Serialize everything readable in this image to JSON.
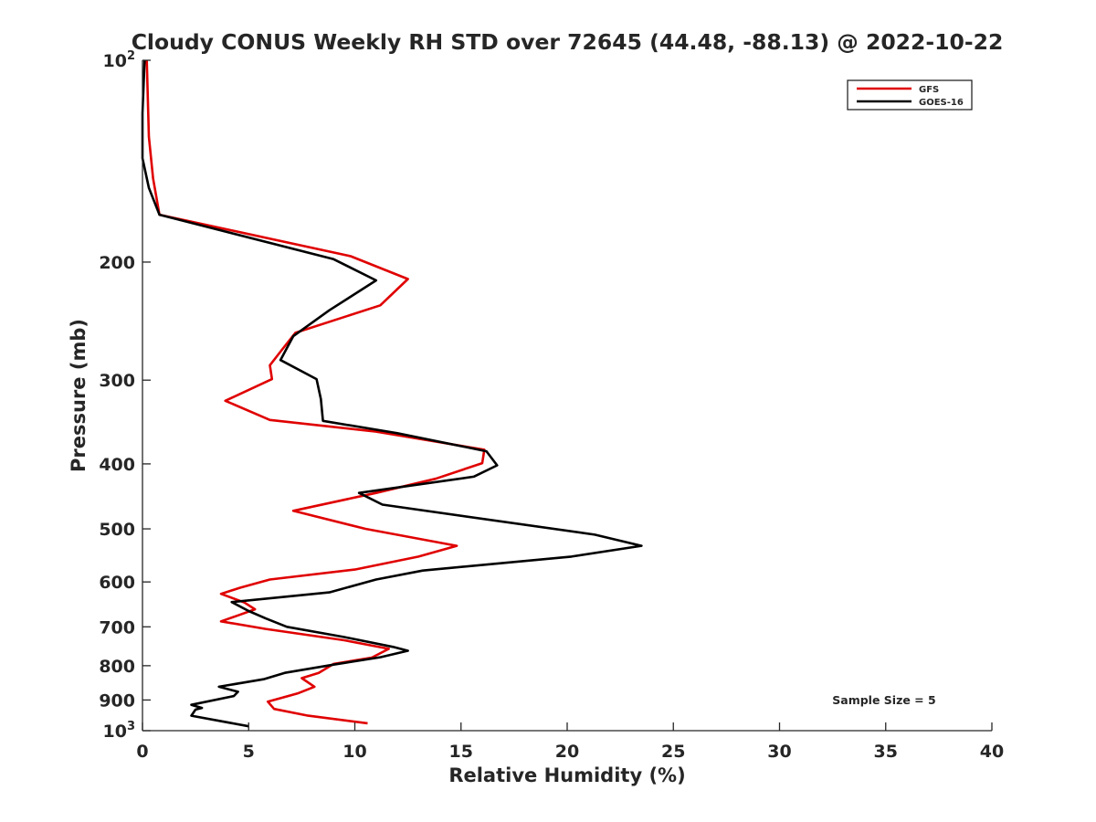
{
  "chart_data": {
    "type": "line",
    "title": "Cloudy CONUS Weekly RH STD over 72645 (44.48, -88.13) @ 2022-10-22",
    "xlabel": "Relative Humidity (%)",
    "ylabel": "Pressure (mb)",
    "xlim": [
      0,
      40
    ],
    "ylim": [
      100,
      1000
    ],
    "y_scale": "log",
    "y_reversed": true,
    "grid": false,
    "legend_position": "top-right",
    "annotation": "Sample Size = 5",
    "x_ticks": [
      0,
      5,
      10,
      15,
      20,
      25,
      30,
      35,
      40
    ],
    "y_ticks": [
      100,
      200,
      300,
      400,
      500,
      600,
      700,
      800,
      900,
      1000
    ],
    "y_tick_labels": [
      {
        "base": "10",
        "exp": "2"
      },
      {
        "base": "200",
        "exp": ""
      },
      {
        "base": "300",
        "exp": ""
      },
      {
        "base": "400",
        "exp": ""
      },
      {
        "base": "500",
        "exp": ""
      },
      {
        "base": "600",
        "exp": ""
      },
      {
        "base": "700",
        "exp": ""
      },
      {
        "base": "800",
        "exp": ""
      },
      {
        "base": "900",
        "exp": ""
      },
      {
        "base": "10",
        "exp": "3"
      }
    ],
    "series": [
      {
        "name": "GFS",
        "color": "#e00000",
        "points": [
          [
            0.2,
            100
          ],
          [
            0.3,
            130
          ],
          [
            0.5,
            150
          ],
          [
            0.8,
            170
          ],
          [
            9.8,
            196
          ],
          [
            12.5,
            212
          ],
          [
            11.2,
            232
          ],
          [
            7.2,
            255
          ],
          [
            6.5,
            272
          ],
          [
            6.0,
            285
          ],
          [
            6.1,
            299
          ],
          [
            3.9,
            322
          ],
          [
            6.0,
            344
          ],
          [
            11.0,
            358
          ],
          [
            16.1,
            381
          ],
          [
            16.0,
            399
          ],
          [
            13.8,
            421
          ],
          [
            11.0,
            442
          ],
          [
            7.1,
            470
          ],
          [
            10.5,
            500
          ],
          [
            14.8,
            530
          ],
          [
            13.0,
            550
          ],
          [
            10.0,
            575
          ],
          [
            6.0,
            595
          ],
          [
            4.6,
            612
          ],
          [
            3.7,
            625
          ],
          [
            4.8,
            644
          ],
          [
            5.3,
            659
          ],
          [
            4.5,
            673
          ],
          [
            3.7,
            687
          ],
          [
            5.8,
            705
          ],
          [
            9.5,
            733
          ],
          [
            11.6,
            755
          ],
          [
            10.8,
            778
          ],
          [
            9.0,
            795
          ],
          [
            8.3,
            820
          ],
          [
            7.5,
            835
          ],
          [
            8.1,
            860
          ],
          [
            7.3,
            880
          ],
          [
            5.9,
            905
          ],
          [
            6.2,
            928
          ],
          [
            7.8,
            950
          ],
          [
            10.6,
            975
          ]
        ]
      },
      {
        "name": "GOES-16",
        "color": "#000000",
        "points": [
          [
            0.1,
            100
          ],
          [
            0.0,
            120
          ],
          [
            0.0,
            140
          ],
          [
            0.3,
            155
          ],
          [
            0.8,
            170
          ],
          [
            9.0,
            198
          ],
          [
            11.0,
            213
          ],
          [
            8.8,
            236
          ],
          [
            7.1,
            258
          ],
          [
            6.5,
            280
          ],
          [
            8.2,
            299
          ],
          [
            8.4,
            320
          ],
          [
            8.5,
            345
          ],
          [
            12.0,
            360
          ],
          [
            16.2,
            383
          ],
          [
            16.7,
            402
          ],
          [
            15.6,
            418
          ],
          [
            10.2,
            442
          ],
          [
            11.3,
            460
          ],
          [
            21.3,
            510
          ],
          [
            23.5,
            530
          ],
          [
            20.2,
            550
          ],
          [
            13.2,
            577
          ],
          [
            11.0,
            595
          ],
          [
            8.8,
            622
          ],
          [
            4.2,
            643
          ],
          [
            5.0,
            663
          ],
          [
            5.8,
            680
          ],
          [
            6.8,
            700
          ],
          [
            9.5,
            725
          ],
          [
            11.8,
            750
          ],
          [
            12.5,
            760
          ],
          [
            11.2,
            777
          ],
          [
            9.0,
            797
          ],
          [
            6.7,
            820
          ],
          [
            5.7,
            838
          ],
          [
            3.6,
            860
          ],
          [
            4.5,
            875
          ],
          [
            4.3,
            888
          ],
          [
            2.3,
            915
          ],
          [
            2.8,
            925
          ],
          [
            2.5,
            930
          ],
          [
            2.3,
            950
          ],
          [
            5.0,
            985
          ]
        ]
      }
    ]
  }
}
